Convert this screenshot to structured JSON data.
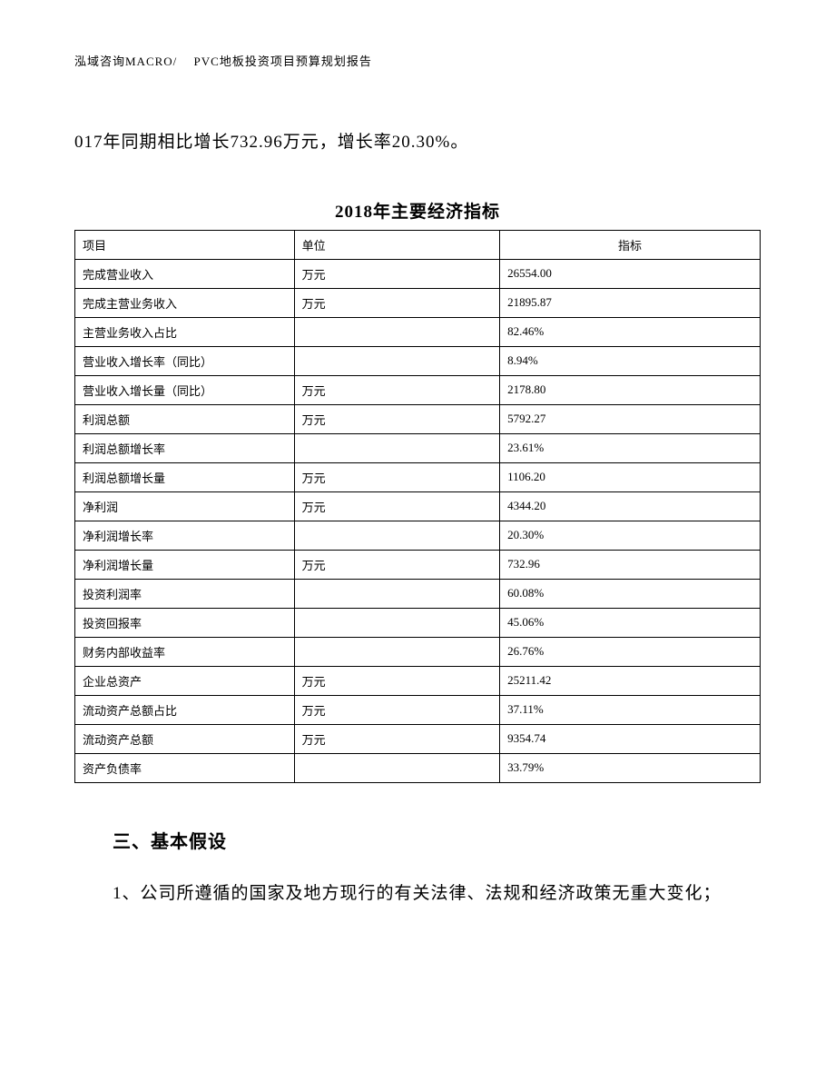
{
  "header": {
    "text": "泓域咨询MACRO/　 PVC地板投资项目预算规划报告"
  },
  "intro_text": "017年同期相比增长732.96万元，增长率20.30%。",
  "table": {
    "title": "2018年主要经济指标",
    "columns": [
      "项目",
      "单位",
      "指标"
    ],
    "rows": [
      [
        "完成营业收入",
        "万元",
        "26554.00"
      ],
      [
        "完成主营业务收入",
        "万元",
        "21895.87"
      ],
      [
        "主营业务收入占比",
        "",
        "82.46%"
      ],
      [
        "营业收入增长率（同比）",
        "",
        "8.94%"
      ],
      [
        "营业收入增长量（同比）",
        "万元",
        "2178.80"
      ],
      [
        "利润总额",
        "万元",
        "5792.27"
      ],
      [
        "利润总额增长率",
        "",
        "23.61%"
      ],
      [
        "利润总额增长量",
        "万元",
        "1106.20"
      ],
      [
        "净利润",
        "万元",
        "4344.20"
      ],
      [
        "净利润增长率",
        "",
        "20.30%"
      ],
      [
        "净利润增长量",
        "万元",
        "732.96"
      ],
      [
        "投资利润率",
        "",
        "60.08%"
      ],
      [
        "投资回报率",
        "",
        "45.06%"
      ],
      [
        "财务内部收益率",
        "",
        "26.76%"
      ],
      [
        "企业总资产",
        "万元",
        "25211.42"
      ],
      [
        "流动资产总额占比",
        "万元",
        "37.11%"
      ],
      [
        "流动资产总额",
        "万元",
        "9354.74"
      ],
      [
        "资产负债率",
        "",
        "33.79%"
      ]
    ]
  },
  "section_heading": "三、基本假设",
  "numbered_para": "1、公司所遵循的国家及地方现行的有关法律、法规和经济政策无重大变化；"
}
